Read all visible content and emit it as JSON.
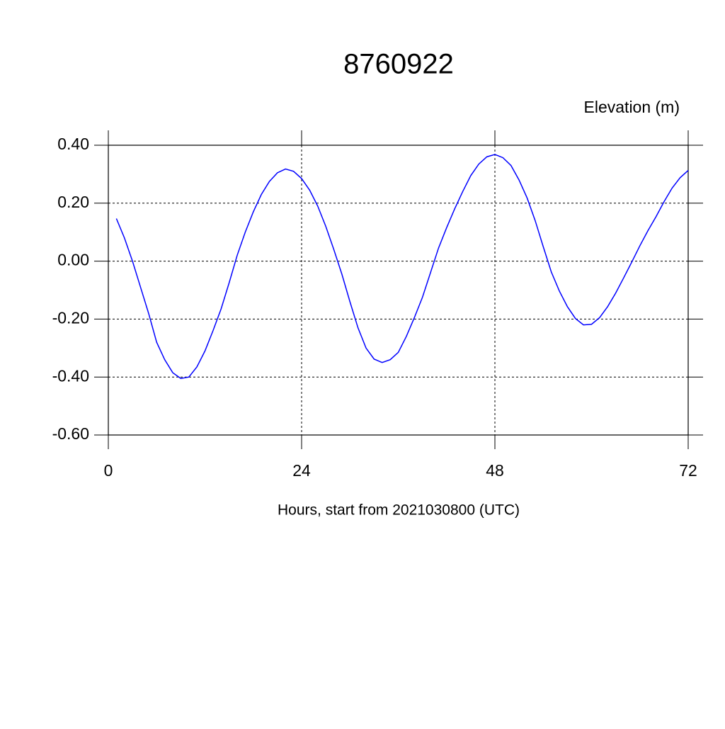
{
  "chart_data": {
    "type": "line",
    "title": "8760922",
    "ylabel": "Elevation (m)",
    "xlabel": "Hours, start from 2021030800 (UTC)",
    "x": [
      1,
      2,
      3,
      4,
      5,
      6,
      7,
      8,
      9,
      10,
      11,
      12,
      13,
      14,
      15,
      16,
      17,
      18,
      19,
      20,
      21,
      22,
      23,
      24,
      25,
      26,
      27,
      28,
      29,
      30,
      31,
      32,
      33,
      34,
      35,
      36,
      37,
      38,
      39,
      40,
      41,
      42,
      43,
      44,
      45,
      46,
      47,
      48,
      49,
      50,
      51,
      52,
      53,
      54,
      55,
      56,
      57,
      58,
      59,
      60,
      61,
      62,
      63,
      64,
      65,
      66,
      67,
      68,
      69,
      70,
      71,
      72
    ],
    "series": [
      {
        "color": "#0000ff",
        "values": [
          0.147,
          0.08,
          0.0,
          -0.09,
          -0.18,
          -0.28,
          -0.34,
          -0.385,
          -0.405,
          -0.4,
          -0.365,
          -0.31,
          -0.24,
          -0.165,
          -0.075,
          0.02,
          0.1,
          0.17,
          0.23,
          0.275,
          0.305,
          0.318,
          0.31,
          0.285,
          0.245,
          0.19,
          0.12,
          0.04,
          -0.045,
          -0.14,
          -0.23,
          -0.3,
          -0.338,
          -0.35,
          -0.34,
          -0.315,
          -0.26,
          -0.195,
          -0.125,
          -0.04,
          0.045,
          0.115,
          0.18,
          0.24,
          0.295,
          0.335,
          0.36,
          0.368,
          0.357,
          0.33,
          0.28,
          0.218,
          0.14,
          0.05,
          -0.037,
          -0.103,
          -0.157,
          -0.198,
          -0.22,
          -0.218,
          -0.195,
          -0.157,
          -0.11,
          -0.057,
          -0.003,
          0.053,
          0.105,
          0.153,
          0.205,
          0.252,
          0.288,
          0.313
        ]
      }
    ],
    "xlim": [
      0,
      72
    ],
    "xticks": [
      0,
      24,
      48,
      72
    ],
    "ylim": [
      -0.6,
      0.4
    ],
    "yticks": [
      {
        "value": -0.6,
        "label": "-0.60"
      },
      {
        "value": -0.4,
        "label": "-0.40"
      },
      {
        "value": -0.2,
        "label": "-0.20"
      },
      {
        "value": 0,
        "label": "0.00"
      },
      {
        "value": 0.2,
        "label": "0.20"
      },
      {
        "value": 0.4,
        "label": "0.40"
      }
    ],
    "grid": true
  }
}
